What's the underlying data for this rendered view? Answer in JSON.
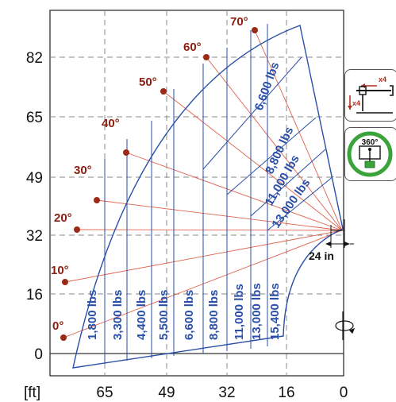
{
  "axes": {
    "unit_label": "[ft]",
    "x_ticks": [
      "65",
      "49",
      "32",
      "16",
      "0"
    ],
    "y_ticks": [
      "82",
      "65",
      "49",
      "32",
      "16",
      "0"
    ]
  },
  "angles": [
    "0°",
    "10°",
    "20°",
    "30°",
    "40°",
    "50°",
    "60°",
    "70°"
  ],
  "capacity_vertical": [
    "1,800 lbs",
    "3,300 lbs",
    "4,400 lbs",
    "5,500 lbs",
    "6,600 lbs",
    "8,800 lbs",
    "11,000 lbs",
    "13,000 lbs",
    "15,400 lbs"
  ],
  "capacity_diagonal": [
    "6,600 lbs",
    "8,800 lbs",
    "11,000 lbs",
    "13,000 lbs"
  ],
  "dimension_label": "24 in",
  "icons": {
    "outrigger_count_a": "x4",
    "outrigger_count_b": "x4",
    "rotation_label": "360°"
  },
  "colors": {
    "envelope": "#2a4fa8",
    "boom_line": "#e0604a",
    "angle_dot": "#9b2a16",
    "angle_text": "#8b1e10",
    "grid": "#888888",
    "ring": "#3aa33a"
  }
}
